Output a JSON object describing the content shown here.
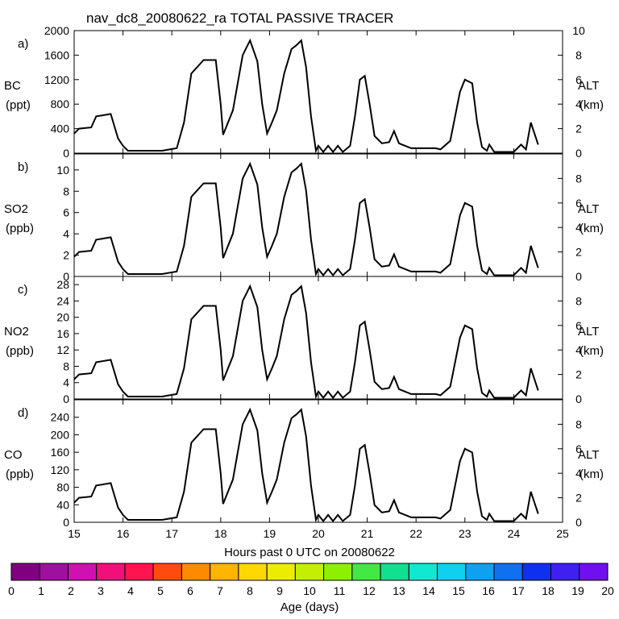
{
  "chart_data": {
    "type": "area",
    "title": "nav_dc8_20080622_ra TOTAL PASSIVE TRACER",
    "xlabel": "Hours past 0 UTC on 20080622",
    "xlim": [
      15,
      25
    ],
    "x_ticks": [
      "15",
      "16",
      "17",
      "18",
      "19",
      "20",
      "21",
      "22",
      "23",
      "24",
      "25"
    ],
    "right_axis": {
      "label": "ALT",
      "units": "(km)",
      "ticks": [
        "0",
        "2",
        "4",
        "6",
        "8",
        "10"
      ],
      "range": [
        0,
        10
      ]
    },
    "colorbar": {
      "label": "Age (days)",
      "ticks": [
        "0",
        "1",
        "2",
        "3",
        "4",
        "5",
        "6",
        "7",
        "8",
        "9",
        "10",
        "11",
        "12",
        "13",
        "14",
        "15",
        "16",
        "17",
        "18",
        "19",
        "20"
      ],
      "colors": [
        "#800080",
        "#a0109e",
        "#d010b0",
        "#f0107a",
        "#ff1450",
        "#ff4a10",
        "#ff8a00",
        "#ffb400",
        "#ffd800",
        "#ecec00",
        "#c4f000",
        "#8ef000",
        "#44e844",
        "#10e090",
        "#10e8d0",
        "#10d0f0",
        "#10a0f0",
        "#1070f0",
        "#1030f0",
        "#4020f0",
        "#7010f0"
      ]
    },
    "panels": [
      {
        "tag": "a)",
        "name": "BC",
        "units": "(ppt)",
        "yticks": [
          "0",
          "400",
          "800",
          "1200",
          "1600",
          "2000"
        ],
        "ylim": [
          0,
          2000
        ],
        "alt_ticks": [
          "0",
          "2",
          "4",
          "6",
          "8",
          "10"
        ],
        "alt_max": 10
      },
      {
        "tag": "b)",
        "name": "SO2",
        "units": "(ppb)",
        "yticks": [
          "0",
          "2",
          "4",
          "6",
          "8",
          "10"
        ],
        "ylim": [
          0,
          11.5
        ],
        "alt_ticks": [
          "0",
          "2",
          "4",
          "6",
          "8"
        ],
        "alt_max": 10
      },
      {
        "tag": "c)",
        "name": "NO2",
        "units": "(ppb)",
        "yticks": [
          "0",
          "4",
          "8",
          "12",
          "16",
          "20",
          "24",
          "28"
        ],
        "ylim": [
          0,
          30
        ],
        "alt_ticks": [
          "0",
          "2",
          "4",
          "6",
          "8"
        ],
        "alt_max": 10
      },
      {
        "tag": "d)",
        "name": "CO",
        "units": "(ppb)",
        "yticks": [
          "0",
          "40",
          "80",
          "120",
          "160",
          "200",
          "240"
        ],
        "ylim": [
          0,
          280
        ],
        "alt_ticks": [
          "0",
          "2",
          "4",
          "6",
          "8"
        ],
        "alt_max": 10
      }
    ],
    "altitude_km": [
      [
        15.0,
        1.6
      ],
      [
        15.1,
        2.0
      ],
      [
        15.35,
        2.1
      ],
      [
        15.45,
        3.0
      ],
      [
        15.75,
        3.2
      ],
      [
        15.9,
        1.2
      ],
      [
        16.0,
        0.6
      ],
      [
        16.1,
        0.2
      ],
      [
        16.8,
        0.2
      ],
      [
        17.1,
        0.4
      ],
      [
        17.25,
        2.5
      ],
      [
        17.4,
        6.5
      ],
      [
        17.65,
        7.6
      ],
      [
        17.9,
        7.6
      ],
      [
        18.0,
        4.0
      ],
      [
        18.05,
        1.5
      ],
      [
        18.25,
        3.5
      ],
      [
        18.45,
        8.0
      ],
      [
        18.6,
        9.2
      ],
      [
        18.75,
        7.5
      ],
      [
        18.85,
        4.0
      ],
      [
        18.95,
        1.6
      ],
      [
        19.05,
        2.5
      ],
      [
        19.15,
        3.5
      ],
      [
        19.3,
        6.5
      ],
      [
        19.45,
        8.5
      ],
      [
        19.55,
        8.8
      ],
      [
        19.65,
        9.2
      ],
      [
        19.75,
        7.0
      ],
      [
        19.85,
        3.0
      ],
      [
        19.95,
        0.2
      ],
      [
        20.0,
        0.6
      ],
      [
        20.1,
        0.1
      ],
      [
        20.2,
        0.6
      ],
      [
        20.3,
        0.1
      ],
      [
        20.4,
        0.6
      ],
      [
        20.5,
        0.1
      ],
      [
        20.65,
        0.6
      ],
      [
        20.75,
        3.0
      ],
      [
        20.85,
        6.0
      ],
      [
        20.95,
        6.3
      ],
      [
        21.05,
        4.0
      ],
      [
        21.15,
        1.4
      ],
      [
        21.3,
        0.8
      ],
      [
        21.45,
        0.9
      ],
      [
        21.55,
        1.8
      ],
      [
        21.65,
        0.8
      ],
      [
        21.9,
        0.4
      ],
      [
        22.4,
        0.4
      ],
      [
        22.5,
        0.3
      ],
      [
        22.7,
        1.0
      ],
      [
        22.9,
        5.0
      ],
      [
        23.0,
        6.0
      ],
      [
        23.15,
        5.7
      ],
      [
        23.25,
        2.5
      ],
      [
        23.35,
        0.5
      ],
      [
        23.45,
        0.2
      ],
      [
        23.5,
        0.7
      ],
      [
        23.6,
        0.1
      ],
      [
        24.0,
        0.1
      ],
      [
        24.15,
        0.7
      ],
      [
        24.25,
        0.3
      ],
      [
        24.35,
        2.5
      ],
      [
        24.5,
        0.7
      ]
    ]
  }
}
